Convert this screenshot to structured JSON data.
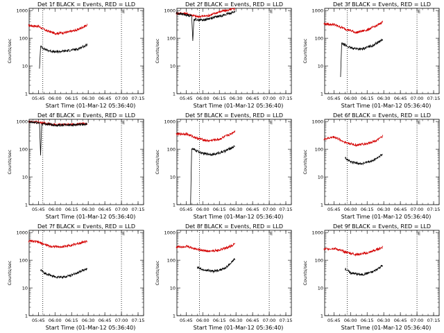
{
  "chart_data": [
    {
      "type": "line",
      "title": "Det 1f BLACK = Events, RED = LLD",
      "xlabel": "Start Time (01-Mar-12 05:36:40)",
      "ylabel": "Counts/sec",
      "x_ticks": [
        "05:45",
        "06:00",
        "06:15",
        "06:30",
        "06:45",
        "07:00",
        "07:15"
      ],
      "y_ticks": [
        "1",
        "10",
        "100",
        "1000"
      ],
      "ylim": [
        1,
        1200
      ],
      "y_scale": "log",
      "xlim": [
        "05:36:40",
        "07:20:00"
      ],
      "vlines": [
        "05:49",
        "07:00"
      ],
      "marker_label": "E",
      "marker_time": "07:00",
      "series": [
        {
          "color": "#d40000",
          "values": [
            [
              "05:36",
              290
            ],
            [
              "05:45",
              270
            ],
            [
              "05:52",
              190
            ],
            [
              "06:00",
              150
            ],
            [
              "06:10",
              160
            ],
            [
              "06:20",
              200
            ],
            [
              "06:29",
              300
            ]
          ]
        },
        {
          "color": "#000000",
          "values": [
            [
              "05:46",
              8
            ],
            [
              "05:47",
              50
            ],
            [
              "05:52",
              38
            ],
            [
              "06:00",
              32
            ],
            [
              "06:10",
              35
            ],
            [
              "06:20",
              40
            ],
            [
              "06:29",
              58
            ]
          ]
        }
      ]
    },
    {
      "type": "line",
      "title": "Det 2f BLACK = Events, RED = LLD",
      "xlabel": "Start Time (01-Mar-12 05:36:40)",
      "ylabel": "Counts/sec",
      "x_ticks": [
        "05:45",
        "06:00",
        "06:15",
        "06:30",
        "06:45",
        "07:00",
        "07:15"
      ],
      "y_ticks": [
        "1",
        "10",
        "100",
        "1000"
      ],
      "ylim": [
        1,
        1200
      ],
      "y_scale": "log",
      "xlim": [
        "05:36:40",
        "07:20:00"
      ],
      "vlines": [
        "05:57",
        "07:00"
      ],
      "marker_label": "E",
      "marker_time": "07:00",
      "series": [
        {
          "color": "#d40000",
          "values": [
            [
              "05:36",
              800
            ],
            [
              "05:45",
              780
            ],
            [
              "05:55",
              600
            ],
            [
              "06:05",
              650
            ],
            [
              "06:15",
              900
            ],
            [
              "06:29",
              1150
            ]
          ]
        },
        {
          "color": "#000000",
          "values": [
            [
              "05:36",
              800
            ],
            [
              "05:50",
              650
            ],
            [
              "05:51",
              80
            ],
            [
              "05:52",
              480
            ],
            [
              "06:00",
              450
            ],
            [
              "06:10",
              560
            ],
            [
              "06:20",
              700
            ],
            [
              "06:29",
              900
            ]
          ]
        }
      ]
    },
    {
      "type": "line",
      "title": "Det 3f BLACK = Events, RED = LLD",
      "xlabel": "Start Time (01-Mar-12 05:36:40)",
      "ylabel": "Counts/sec",
      "x_ticks": [
        "05:45",
        "06:00",
        "06:15",
        "06:30",
        "06:45",
        "07:00",
        "07:15"
      ],
      "y_ticks": [
        "1",
        "10",
        "100",
        "1000"
      ],
      "ylim": [
        1,
        1200
      ],
      "y_scale": "log",
      "xlim": [
        "05:36:40",
        "07:20:00"
      ],
      "vlines": [
        "05:57",
        "07:00"
      ],
      "marker_label": "E",
      "marker_time": "07:00",
      "series": [
        {
          "color": "#d40000",
          "values": [
            [
              "05:36",
              330
            ],
            [
              "05:45",
              310
            ],
            [
              "05:55",
              220
            ],
            [
              "06:05",
              160
            ],
            [
              "06:15",
              200
            ],
            [
              "06:25",
              300
            ],
            [
              "06:29",
              400
            ]
          ]
        },
        {
          "color": "#000000",
          "values": [
            [
              "05:51",
              4
            ],
            [
              "05:52",
              65
            ],
            [
              "06:00",
              45
            ],
            [
              "06:10",
              40
            ],
            [
              "06:20",
              55
            ],
            [
              "06:29",
              90
            ]
          ]
        }
      ]
    },
    {
      "type": "line",
      "title": "Det 4f BLACK = Events, RED = LLD",
      "xlabel": "Start Time (01-Mar-12 05:36:40)",
      "ylabel": "Counts/sec",
      "x_ticks": [
        "05:45",
        "06:00",
        "06:15",
        "06:30",
        "06:45",
        "07:00",
        "07:15"
      ],
      "y_ticks": [
        "1",
        "10",
        "100",
        "1000"
      ],
      "ylim": [
        1,
        1200
      ],
      "y_scale": "log",
      "xlim": [
        "05:36:40",
        "07:20:00"
      ],
      "vlines": [
        "05:49",
        "07:00"
      ],
      "marker_label": "E",
      "marker_time": "07:00",
      "series": [
        {
          "color": "#d40000",
          "values": [
            [
              "05:36",
              1000
            ],
            [
              "05:45",
              950
            ],
            [
              "06:00",
              760
            ],
            [
              "06:15",
              780
            ],
            [
              "06:29",
              850
            ]
          ]
        },
        {
          "color": "#000000",
          "values": [
            [
              "05:36",
              950
            ],
            [
              "05:46",
              900
            ],
            [
              "05:47",
              60
            ],
            [
              "05:48",
              850
            ],
            [
              "06:00",
              740
            ],
            [
              "06:15",
              760
            ],
            [
              "06:29",
              780
            ]
          ]
        }
      ]
    },
    {
      "type": "line",
      "title": "Det 5f BLACK = Events, RED = LLD",
      "xlabel": "Start Time (01-Mar-12 05:36:40)",
      "ylabel": "Counts/sec",
      "x_ticks": [
        "05:45",
        "06:00",
        "06:15",
        "06:30",
        "06:45",
        "07:00",
        "07:15"
      ],
      "y_ticks": [
        "1",
        "10",
        "100",
        "1000"
      ],
      "ylim": [
        1,
        1200
      ],
      "y_scale": "log",
      "xlim": [
        "05:36:40",
        "07:20:00"
      ],
      "vlines": [
        "05:57",
        "07:00"
      ],
      "marker_label": "E",
      "marker_time": "07:00",
      "series": [
        {
          "color": "#d40000",
          "values": [
            [
              "05:36",
              350
            ],
            [
              "05:45",
              360
            ],
            [
              "05:55",
              250
            ],
            [
              "06:05",
              200
            ],
            [
              "06:15",
              230
            ],
            [
              "06:25",
              350
            ],
            [
              "06:29",
              450
            ]
          ]
        },
        {
          "color": "#000000",
          "values": [
            [
              "05:49",
              1
            ],
            [
              "05:50",
              105
            ],
            [
              "06:00",
              70
            ],
            [
              "06:10",
              65
            ],
            [
              "06:20",
              85
            ],
            [
              "06:29",
              130
            ]
          ]
        }
      ]
    },
    {
      "type": "line",
      "title": "Det 6f BLACK = Events, RED = LLD",
      "xlabel": "Start Time (01-Mar-12 05:36:40)",
      "ylabel": "Counts/sec",
      "x_ticks": [
        "05:45",
        "06:00",
        "06:15",
        "06:30",
        "06:45",
        "07:00",
        "07:15"
      ],
      "y_ticks": [
        "1",
        "10",
        "100",
        "1000"
      ],
      "ylim": [
        1,
        1200
      ],
      "y_scale": "log",
      "xlim": [
        "05:36:40",
        "07:20:00"
      ],
      "vlines": [
        "05:57",
        "07:00"
      ],
      "marker_label": "E",
      "marker_time": "07:00",
      "series": [
        {
          "color": "#d40000",
          "values": [
            [
              "05:36",
              230
            ],
            [
              "05:45",
              280
            ],
            [
              "05:55",
              180
            ],
            [
              "06:05",
              140
            ],
            [
              "06:15",
              160
            ],
            [
              "06:25",
              220
            ],
            [
              "06:29",
              300
            ]
          ]
        },
        {
          "color": "#000000",
          "values": [
            [
              "05:55",
              50
            ],
            [
              "06:00",
              35
            ],
            [
              "06:10",
              30
            ],
            [
              "06:20",
              38
            ],
            [
              "06:29",
              65
            ]
          ]
        }
      ]
    },
    {
      "type": "line",
      "title": "Det 7f BLACK = Events, RED = LLD",
      "xlabel": "Start Time (01-Mar-12 05:36:40)",
      "ylabel": "Counts/sec",
      "x_ticks": [
        "05:45",
        "06:00",
        "06:15",
        "06:30",
        "06:45",
        "07:00",
        "07:15"
      ],
      "y_ticks": [
        "1",
        "10",
        "100",
        "1000"
      ],
      "ylim": [
        1,
        1200
      ],
      "y_scale": "log",
      "xlim": [
        "05:36:40",
        "07:20:00"
      ],
      "vlines": [
        "05:49",
        "07:00"
      ],
      "marker_label": "E",
      "marker_time": "07:00",
      "series": [
        {
          "color": "#d40000",
          "values": [
            [
              "05:36",
              500
            ],
            [
              "05:45",
              450
            ],
            [
              "05:55",
              320
            ],
            [
              "06:05",
              300
            ],
            [
              "06:15",
              350
            ],
            [
              "06:25",
              450
            ],
            [
              "06:29",
              480
            ]
          ]
        },
        {
          "color": "#000000",
          "values": [
            [
              "05:47",
              45
            ],
            [
              "05:50",
              35
            ],
            [
              "06:00",
              25
            ],
            [
              "06:10",
              25
            ],
            [
              "06:20",
              35
            ],
            [
              "06:29",
              50
            ]
          ]
        }
      ]
    },
    {
      "type": "line",
      "title": "Det 8f BLACK = Events, RED = LLD",
      "xlabel": "Start Time (01-Mar-12 05:36:40)",
      "ylabel": "Counts/sec",
      "x_ticks": [
        "05:45",
        "06:00",
        "06:15",
        "06:30",
        "06:45",
        "07:00",
        "07:15"
      ],
      "y_ticks": [
        "1",
        "10",
        "100",
        "1000"
      ],
      "ylim": [
        1,
        1200
      ],
      "y_scale": "log",
      "xlim": [
        "05:36:40",
        "07:20:00"
      ],
      "vlines": [
        "05:57",
        "07:00"
      ],
      "marker_label": "E",
      "marker_time": "07:00",
      "series": [
        {
          "color": "#d40000",
          "values": [
            [
              "05:36",
              300
            ],
            [
              "05:45",
              320
            ],
            [
              "05:55",
              250
            ],
            [
              "06:05",
              210
            ],
            [
              "06:15",
              230
            ],
            [
              "06:25",
              320
            ],
            [
              "06:29",
              400
            ]
          ]
        },
        {
          "color": "#000000",
          "values": [
            [
              "05:55",
              55
            ],
            [
              "06:00",
              45
            ],
            [
              "06:10",
              40
            ],
            [
              "06:20",
              50
            ],
            [
              "06:29",
              110
            ]
          ]
        }
      ]
    },
    {
      "type": "line",
      "title": "Det 9f BLACK = Events, RED = LLD",
      "xlabel": "Start Time (01-Mar-12 05:36:40)",
      "ylabel": "Counts/sec",
      "x_ticks": [
        "05:45",
        "06:00",
        "06:15",
        "06:30",
        "06:45",
        "07:00",
        "07:15"
      ],
      "y_ticks": [
        "1",
        "10",
        "100",
        "1000"
      ],
      "ylim": [
        1,
        1200
      ],
      "y_scale": "log",
      "xlim": [
        "05:36:40",
        "07:20:00"
      ],
      "vlines": [
        "05:57",
        "07:00"
      ],
      "marker_label": "E",
      "marker_time": "07:00",
      "series": [
        {
          "color": "#d40000",
          "values": [
            [
              "05:36",
              250
            ],
            [
              "05:45",
              270
            ],
            [
              "05:55",
              200
            ],
            [
              "06:05",
              160
            ],
            [
              "06:15",
              180
            ],
            [
              "06:25",
              250
            ],
            [
              "06:29",
              300
            ]
          ]
        },
        {
          "color": "#000000",
          "values": [
            [
              "05:55",
              50
            ],
            [
              "06:00",
              35
            ],
            [
              "06:10",
              30
            ],
            [
              "06:20",
              38
            ],
            [
              "06:29",
              65
            ]
          ]
        }
      ]
    }
  ]
}
